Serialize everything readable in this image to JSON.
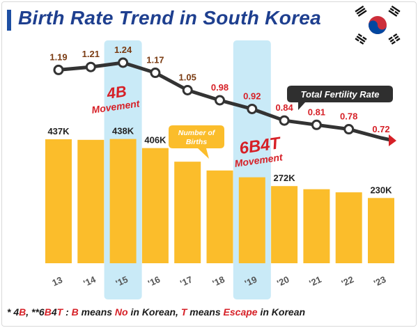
{
  "title": "Birth Rate Trend in South Korea",
  "flag_icon": "south-korea-flag-icon",
  "chart_data": {
    "type": "bar+line",
    "categories": [
      "13",
      "'14",
      "'15",
      "'16",
      "'17",
      "'18",
      "'19",
      "'20",
      "'21",
      "'22",
      "'23"
    ],
    "series": [
      {
        "name": "Number of Births",
        "type": "bar",
        "values": [
          437,
          435,
          438,
          406,
          358,
          327,
          303,
          272,
          261,
          250,
          230
        ],
        "labels": [
          "437K",
          "",
          "438K",
          "406K",
          "",
          "",
          "",
          "272K",
          "",
          "",
          "230K"
        ],
        "color": "#fbbd2b"
      },
      {
        "name": "Total Fertility Rate",
        "type": "line",
        "values": [
          1.19,
          1.21,
          1.24,
          1.17,
          1.05,
          0.98,
          0.92,
          0.84,
          0.81,
          0.78,
          0.72
        ],
        "labels": [
          "1.19",
          "1.21",
          "1.24",
          "1.17",
          "1.05",
          "0.98",
          "0.92",
          "0.84",
          "0.81",
          "0.78",
          "0.72"
        ],
        "color": "#333333"
      }
    ],
    "bar_scale_max": 437,
    "line_ylim": [
      0.72,
      1.24
    ],
    "highlights": [
      {
        "category": "'15",
        "text": "4B",
        "subtext": "Movement"
      },
      {
        "category": "'19",
        "text": "6B4T",
        "subtext": "Movement"
      }
    ],
    "callouts": {
      "births": "Number of Births",
      "fertility": "Total Fertility Rate"
    },
    "colors": {
      "highlight": "#c9eaf7",
      "line": "#333333",
      "label_dark": "#7a3b12",
      "label_red": "#d62027",
      "callout_bg": "#fbbd2b",
      "callout_dark": "#2f2f2f"
    }
  },
  "footnote": {
    "prefix": "* 4",
    "b1": "B",
    "mid1": ", **6",
    "b2": "B",
    "four": "4",
    "t": "T",
    "colon": " : ",
    "b3": "B",
    "means1": " means ",
    "no": "No",
    "in1": " in Korean, ",
    "t2": "T",
    "means2": " means ",
    "escape": "Escape",
    "in2": " in Korean"
  }
}
